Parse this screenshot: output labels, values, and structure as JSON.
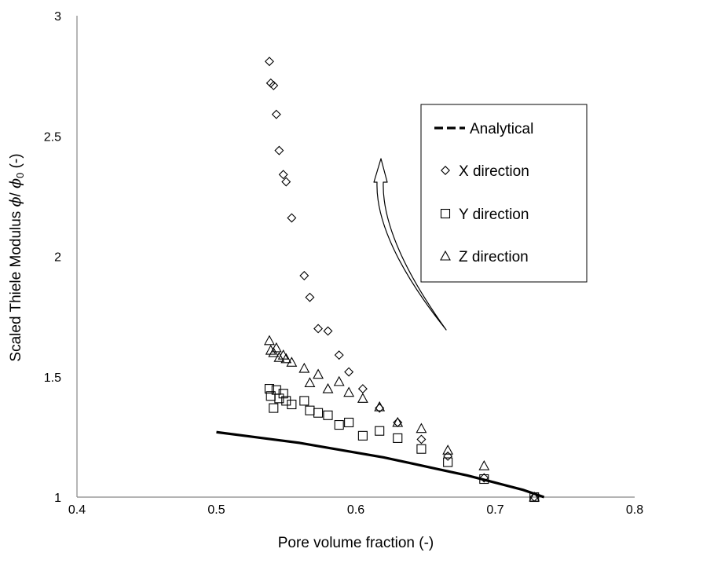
{
  "chart_data": {
    "type": "scatter",
    "xlabel": "Pore volume fraction (-)",
    "ylabel": {
      "prefix": "Scaled Thiele Modulus ",
      "symbol": "ϕ",
      "sep": "/ ",
      "sub": "0",
      "suffix": " (-)"
    },
    "xlim": [
      0.4,
      0.8
    ],
    "ylim": [
      1,
      3
    ],
    "xticks": [
      "0.4",
      "0.5",
      "0.6",
      "0.7",
      "0.8"
    ],
    "yticks": [
      "1",
      "1.5",
      "2",
      "2.5",
      "3"
    ],
    "grid": false,
    "legend_position": "upper-right",
    "series": [
      {
        "name": "Analytical",
        "style": "dashed-line",
        "color": "#000000",
        "x": [
          0.5,
          0.52,
          0.54,
          0.56,
          0.58,
          0.6,
          0.62,
          0.64,
          0.66,
          0.68,
          0.7,
          0.72,
          0.735
        ],
        "y": [
          1.27,
          1.255,
          1.24,
          1.225,
          1.205,
          1.185,
          1.165,
          1.14,
          1.115,
          1.09,
          1.06,
          1.03,
          1.0
        ]
      },
      {
        "name": "X direction",
        "marker": "diamond",
        "x": [
          0.538,
          0.539,
          0.541,
          0.543,
          0.545,
          0.548,
          0.55,
          0.554,
          0.563,
          0.567,
          0.573,
          0.58,
          0.588,
          0.595,
          0.605,
          0.617,
          0.63,
          0.647,
          0.666,
          0.692,
          0.728
        ],
        "y": [
          2.81,
          2.72,
          2.71,
          2.59,
          2.44,
          2.34,
          2.31,
          2.16,
          1.92,
          1.83,
          1.7,
          1.69,
          1.59,
          1.52,
          1.45,
          1.37,
          1.31,
          1.24,
          1.17,
          1.08,
          1.0
        ]
      },
      {
        "name": "Y direction",
        "marker": "square",
        "x": [
          0.538,
          0.539,
          0.541,
          0.543,
          0.545,
          0.548,
          0.55,
          0.554,
          0.563,
          0.567,
          0.573,
          0.58,
          0.588,
          0.595,
          0.605,
          0.617,
          0.63,
          0.647,
          0.666,
          0.692,
          0.728
        ],
        "y": [
          1.45,
          1.42,
          1.37,
          1.445,
          1.41,
          1.43,
          1.4,
          1.385,
          1.4,
          1.36,
          1.35,
          1.34,
          1.3,
          1.31,
          1.255,
          1.275,
          1.245,
          1.2,
          1.145,
          1.075,
          1.0
        ]
      },
      {
        "name": "Z direction",
        "marker": "triangle",
        "x": [
          0.538,
          0.539,
          0.541,
          0.543,
          0.545,
          0.548,
          0.55,
          0.554,
          0.563,
          0.567,
          0.573,
          0.58,
          0.588,
          0.595,
          0.605,
          0.617,
          0.63,
          0.647,
          0.666,
          0.692,
          0.728
        ],
        "y": [
          1.65,
          1.61,
          1.6,
          1.62,
          1.58,
          1.59,
          1.575,
          1.56,
          1.535,
          1.475,
          1.51,
          1.45,
          1.48,
          1.435,
          1.41,
          1.375,
          1.31,
          1.285,
          1.195,
          1.13,
          1.0
        ]
      }
    ]
  }
}
